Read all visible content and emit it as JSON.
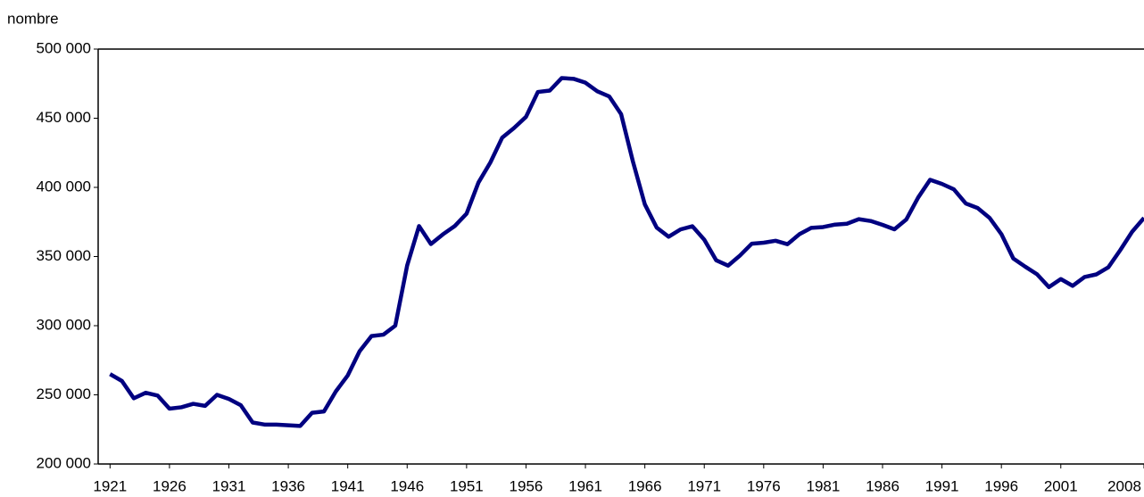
{
  "chart_data": {
    "type": "line",
    "y_axis_label": "nombre",
    "x": [
      1921,
      1922,
      1923,
      1924,
      1925,
      1926,
      1927,
      1928,
      1929,
      1930,
      1931,
      1932,
      1933,
      1934,
      1935,
      1936,
      1937,
      1938,
      1939,
      1940,
      1941,
      1942,
      1943,
      1944,
      1945,
      1946,
      1947,
      1948,
      1949,
      1950,
      1951,
      1952,
      1953,
      1954,
      1955,
      1956,
      1957,
      1958,
      1959,
      1960,
      1961,
      1962,
      1963,
      1964,
      1965,
      1966,
      1967,
      1968,
      1969,
      1970,
      1971,
      1972,
      1973,
      1974,
      1975,
      1976,
      1977,
      1978,
      1979,
      1980,
      1981,
      1982,
      1983,
      1984,
      1985,
      1986,
      1987,
      1988,
      1989,
      1990,
      1991,
      1992,
      1993,
      1994,
      1995,
      1996,
      1997,
      1998,
      1999,
      2000,
      2001,
      2002,
      2003,
      2004,
      2005,
      2006,
      2007,
      2008
    ],
    "series": [
      {
        "color": "#000080",
        "values": [
          265000,
          260000,
          247500,
          251500,
          249500,
          240000,
          241000,
          243500,
          242000,
          250000,
          247000,
          242500,
          230000,
          228500,
          228500,
          228000,
          227500,
          237000,
          238000,
          252500,
          264000,
          281500,
          292500,
          293500,
          300000,
          343500,
          372000,
          359000,
          366000,
          372000,
          381000,
          403500,
          418000,
          436000,
          443000,
          451000,
          469000,
          470000,
          479000,
          478500,
          475700,
          469500,
          465800,
          453000,
          418600,
          387700,
          370900,
          364300,
          369600,
          371900,
          362200,
          347300,
          343400,
          350700,
          359300,
          360000,
          361400,
          358900,
          366100,
          370700,
          371300,
          373100,
          373700,
          377000,
          375700,
          372900,
          369700,
          376800,
          392700,
          405500,
          402500,
          398600,
          388400,
          385100,
          378000,
          366200,
          348600,
          342700,
          337200,
          327900,
          333700,
          328800,
          335200,
          337100,
          342200,
          354600,
          367900,
          377900
        ]
      }
    ],
    "xlim": [
      1920,
      2008
    ],
    "xticks": [
      1921,
      1926,
      1931,
      1936,
      1941,
      1946,
      1951,
      1956,
      1961,
      1966,
      1971,
      1976,
      1981,
      1986,
      1991,
      1996,
      2001,
      2008
    ],
    "ylim": [
      200000,
      500000
    ],
    "yticks": [
      {
        "value": 200000,
        "label": "200 000"
      },
      {
        "value": 250000,
        "label": "250 000"
      },
      {
        "value": 300000,
        "label": "300 000"
      },
      {
        "value": 350000,
        "label": "350 000"
      },
      {
        "value": 400000,
        "label": "400 000"
      },
      {
        "value": 450000,
        "label": "450 000"
      },
      {
        "value": 500000,
        "label": "500 000"
      }
    ],
    "grid": false
  }
}
